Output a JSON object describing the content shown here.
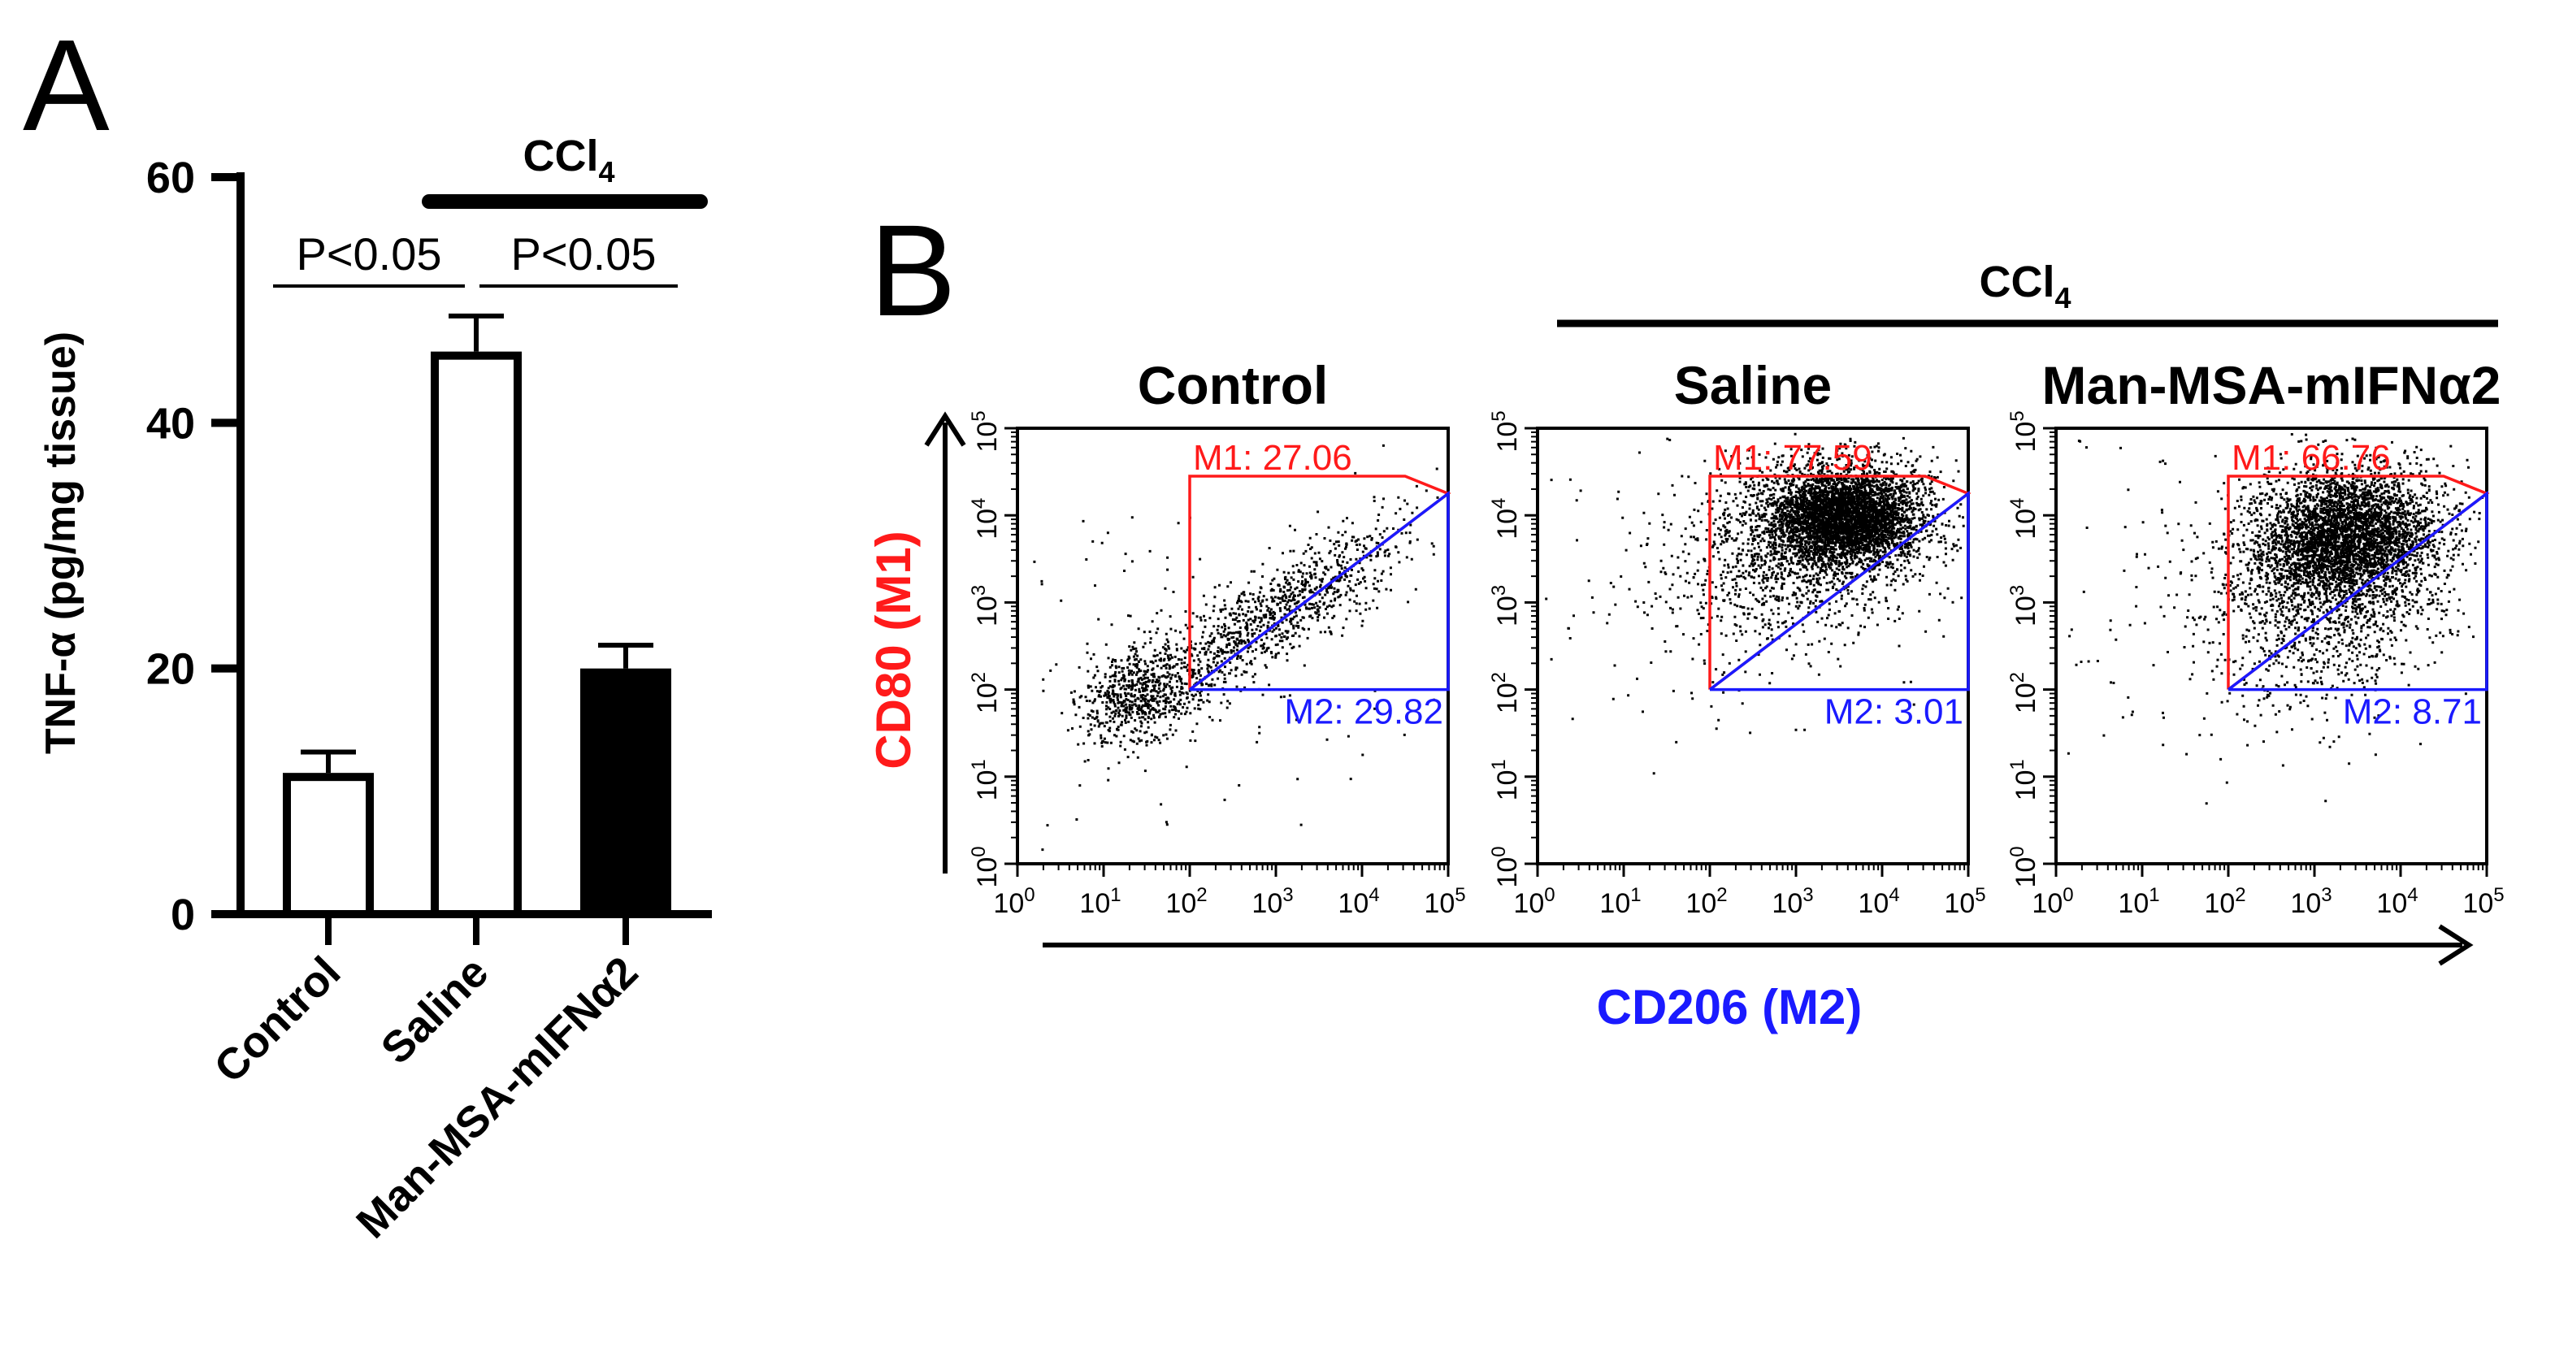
{
  "figure": {
    "panel_a_letter": "A",
    "panel_b_letter": "B"
  },
  "chart_data": [
    {
      "type": "bar",
      "panel": "A",
      "title": "",
      "ylabel": "TNF-α (pg/mg tissue)",
      "xlabel": "",
      "ylim": [
        0,
        60
      ],
      "yticks": [
        0,
        20,
        40,
        60
      ],
      "categories": [
        "Control",
        "Saline",
        "Man-MSA-mIFNα2"
      ],
      "values": [
        11.5,
        45.8,
        20.0
      ],
      "errors": [
        1.7,
        2.9,
        1.9
      ],
      "fills": [
        "white",
        "white",
        "black"
      ],
      "group_bracket": {
        "label_main": "CCl",
        "label_sub": "4",
        "over": [
          "Saline",
          "Man-MSA-mIFNα2"
        ]
      },
      "annotations": [
        {
          "text": "P<0.05",
          "between": [
            "Control",
            "Saline"
          ]
        },
        {
          "text": "P<0.05",
          "between": [
            "Saline",
            "Man-MSA-mIFNα2"
          ]
        }
      ]
    },
    {
      "type": "scatter",
      "panel": "B",
      "xlabel": "CD206 (M2)",
      "ylabel": "CD80 (M1)",
      "xlabel_color": "#1a1aff",
      "ylabel_color": "#ff1a1a",
      "axis_scale": "log",
      "xlim": [
        1,
        100000
      ],
      "ylim": [
        1,
        100000
      ],
      "tick_exponents": [
        "0",
        "1",
        "2",
        "3",
        "4",
        "5"
      ],
      "tick_base": "10",
      "group_bracket": {
        "label_main": "CCl",
        "label_sub": "4",
        "over": [
          "Saline",
          "Man-MSA-mIFNα2"
        ]
      },
      "gate_colors": {
        "M1": "#ff1a1a",
        "M2": "#1a1aff"
      },
      "panels": [
        {
          "title": "Control",
          "m1_label": "M1: 27.06",
          "m2_label": "M2: 29.82",
          "clusters": [
            {
              "cx": 1.4,
              "cy": 1.95,
              "sx": 0.35,
              "sy": 0.3,
              "rho": 0.3,
              "n": 650
            },
            {
              "cx": 3.0,
              "cy": 2.9,
              "sx": 0.75,
              "sy": 0.55,
              "rho": 0.85,
              "n": 950
            },
            {
              "cx": 2.2,
              "cy": 2.5,
              "sx": 1.3,
              "sy": 1.0,
              "rho": 0.2,
              "n": 150
            }
          ]
        },
        {
          "title": "Saline",
          "m1_label": "M1: 77.59",
          "m2_label": "M2: 3.01",
          "clusters": [
            {
              "cx": 3.55,
              "cy": 4.0,
              "sx": 0.45,
              "sy": 0.28,
              "rho": 0.0,
              "n": 3800
            },
            {
              "cx": 3.0,
              "cy": 3.6,
              "sx": 0.8,
              "sy": 0.55,
              "rho": 0.2,
              "n": 1200
            },
            {
              "cx": 2.3,
              "cy": 3.4,
              "sx": 1.2,
              "sy": 0.9,
              "rho": 0.1,
              "n": 200
            }
          ]
        },
        {
          "title": "Man-MSA-mIFNα2",
          "m1_label": "M1: 66.76",
          "m2_label": "M2: 8.71",
          "clusters": [
            {
              "cx": 3.35,
              "cy": 3.8,
              "sx": 0.5,
              "sy": 0.35,
              "rho": 0.1,
              "n": 3300
            },
            {
              "cx": 3.2,
              "cy": 3.2,
              "sx": 0.7,
              "sy": 0.65,
              "rho": 0.2,
              "n": 1500
            },
            {
              "cx": 2.3,
              "cy": 3.2,
              "sx": 1.2,
              "sy": 1.0,
              "rho": 0.1,
              "n": 220
            }
          ]
        }
      ]
    }
  ]
}
